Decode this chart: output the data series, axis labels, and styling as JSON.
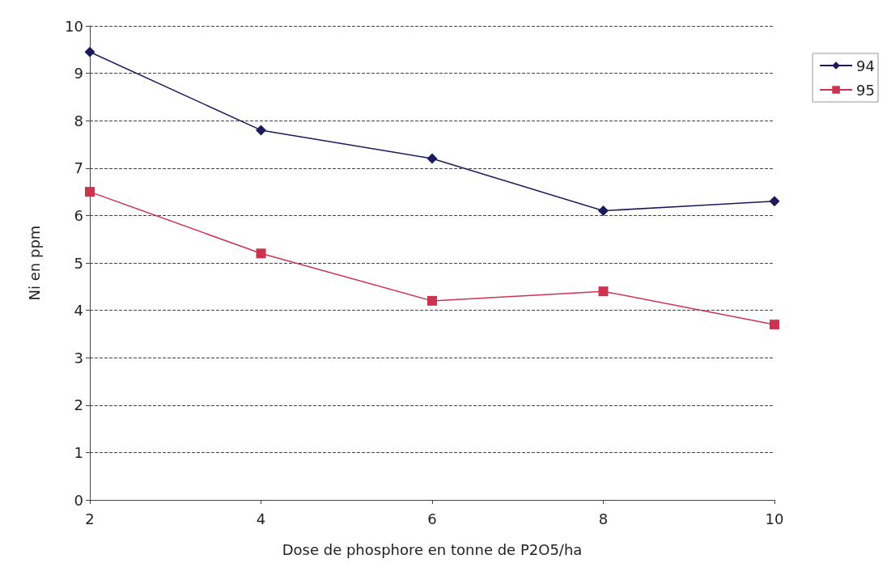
{
  "chart_data": {
    "type": "line",
    "xlabel": "Dose de phosphore en tonne de P2O5/ha",
    "ylabel": "Ni en ppm",
    "categories": [
      "2",
      "4",
      "6",
      "8",
      "10"
    ],
    "series": [
      {
        "name": "94",
        "color": "#1a1a5c",
        "marker": "diamond",
        "values": [
          9.45,
          7.8,
          7.2,
          6.1,
          6.3
        ]
      },
      {
        "name": "95",
        "color": "#cc3350",
        "marker": "square",
        "values": [
          6.5,
          5.2,
          4.2,
          4.4,
          3.7
        ]
      }
    ],
    "ylim": [
      0,
      10
    ],
    "yticks": [
      0,
      1,
      2,
      3,
      4,
      5,
      6,
      7,
      8,
      9,
      10
    ],
    "grid": "y",
    "legend": "top right",
    "line_style": "solid"
  }
}
